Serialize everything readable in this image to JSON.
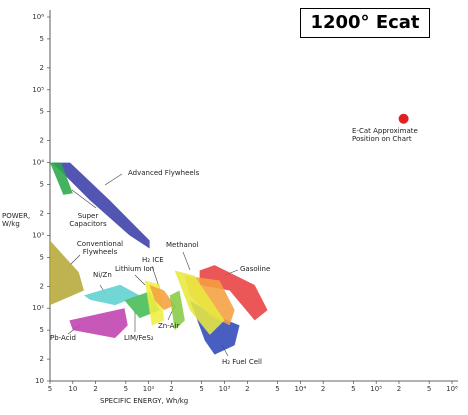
{
  "chart_data": {
    "type": "area-map",
    "title": "1200° Ecat",
    "x_label": "SPECIFIC ENERGY, Wh/kg",
    "y_label": "POWER, W/kg",
    "log_x": true,
    "log_y": true,
    "xlim": [
      5,
      1000000
    ],
    "ylim": [
      10,
      1000000
    ],
    "xticks": [
      5,
      10,
      {
        "value": 20,
        "label": "2"
      },
      {
        "value": 50,
        "label": "5"
      },
      {
        "value": 100,
        "label": "10²"
      },
      {
        "value": 200,
        "label": "2"
      },
      {
        "value": 500,
        "label": "5"
      },
      {
        "value": 1000,
        "label": "10³"
      },
      {
        "value": 2000,
        "label": "2"
      },
      {
        "value": 5000,
        "label": "5"
      },
      {
        "value": 10000,
        "label": "10⁴"
      },
      {
        "value": 20000,
        "label": "2"
      },
      {
        "value": 50000,
        "label": "5"
      },
      {
        "value": 100000,
        "label": "10⁵"
      },
      {
        "value": 200000,
        "label": "2"
      },
      {
        "value": 500000,
        "label": "5"
      },
      {
        "value": 1000000,
        "label": "10⁶"
      }
    ],
    "yticks": [
      10,
      {
        "value": 20,
        "label": "2"
      },
      {
        "value": 50,
        "label": "5"
      },
      {
        "value": 100,
        "label": "10²"
      },
      {
        "value": 200,
        "label": "2"
      },
      {
        "value": 500,
        "label": "5"
      },
      {
        "value": 1000,
        "label": "10³"
      },
      {
        "value": 2000,
        "label": "2"
      },
      {
        "value": 5000,
        "label": "5"
      },
      {
        "value": 10000,
        "label": "10⁴"
      },
      {
        "value": 20000,
        "label": "2"
      },
      {
        "value": 50000,
        "label": "5"
      },
      {
        "value": 100000,
        "label": "10⁵"
      },
      {
        "value": 200000,
        "label": "2"
      },
      {
        "value": 500000,
        "label": "5"
      },
      {
        "value": 1000000,
        "label": "10⁶"
      }
    ],
    "series": [
      {
        "name": "Conventional Flywheels",
        "color": "#b5a838",
        "x": [
          5,
          12,
          14,
          5
        ],
        "y": [
          850,
          310,
          175,
          110
        ]
      },
      {
        "name": "Advanced Flywheels",
        "color": "#3b3ea8",
        "x": [
          5.3,
          9.2,
          31,
          103,
          103,
          56,
          17,
          6.8
        ],
        "y": [
          10000,
          10000,
          3000,
          850,
          660,
          1000,
          3000,
          7800
        ]
      },
      {
        "name": "Super Capacitors",
        "color": "#2aa84a",
        "x": [
          5,
          7,
          10,
          7.5
        ],
        "y": [
          10000,
          10000,
          3800,
          3600
        ]
      },
      {
        "name": "Ni/Zn",
        "color": "#5fd0d0",
        "x": [
          14,
          42,
          76,
          36,
          17
        ],
        "y": [
          150,
          210,
          150,
          110,
          130
        ]
      },
      {
        "name": "Pb-Acid",
        "color": "#c040b0",
        "x": [
          9,
          48,
          53,
          36,
          10
        ],
        "y": [
          68,
          100,
          58,
          39,
          50
        ]
      },
      {
        "name": "LIM/FeS₂",
        "color": "#44bb55",
        "x": [
          48,
          103,
          140,
          76
        ],
        "y": [
          128,
          170,
          94,
          73
        ]
      },
      {
        "name": "Lithium Ion",
        "color": "#f0ee40",
        "x": [
          89,
          140,
          160,
          110
        ],
        "y": [
          240,
          210,
          68,
          58
        ]
      },
      {
        "name": "H₂ ICE",
        "color": "#f5a040",
        "x": [
          103,
          160,
          220,
          160,
          120
        ],
        "y": [
          208,
          175,
          110,
          94,
          128
        ]
      },
      {
        "name": "Zn-Air",
        "color": "#88cc44",
        "x": [
          190,
          255,
          300,
          220
        ],
        "y": [
          150,
          175,
          68,
          50
        ]
      },
      {
        "name": "H₂ Fuel Cell",
        "color": "#3048b8",
        "x": [
          350,
          740,
          1580,
          1360,
          740,
          550
        ],
        "y": [
          128,
          80,
          58,
          31,
          23,
          36
        ]
      },
      {
        "name": "Gasoline",
        "color": "#e84040",
        "x": [
          470,
          740,
          2500,
          3700,
          2500,
          1170,
          470
        ],
        "y": [
          330,
          390,
          208,
          94,
          68,
          175,
          208
        ]
      },
      {
        "color": "#f5a040",
        "x": [
          300,
          860,
          1360,
          1170,
          640,
          350
        ],
        "y": [
          280,
          240,
          94,
          58,
          80,
          150
        ]
      },
      {
        "name": "Methanol",
        "color": "#e8e840",
        "x": [
          220,
          400,
          1000,
          640,
          350
        ],
        "y": [
          330,
          280,
          68,
          43,
          94
        ]
      },
      {
        "name": "E-Cat Approximate Position on Chart",
        "color": "#e02020",
        "marker": "point",
        "x": [
          230000
        ],
        "y": [
          40000
        ]
      }
    ]
  }
}
